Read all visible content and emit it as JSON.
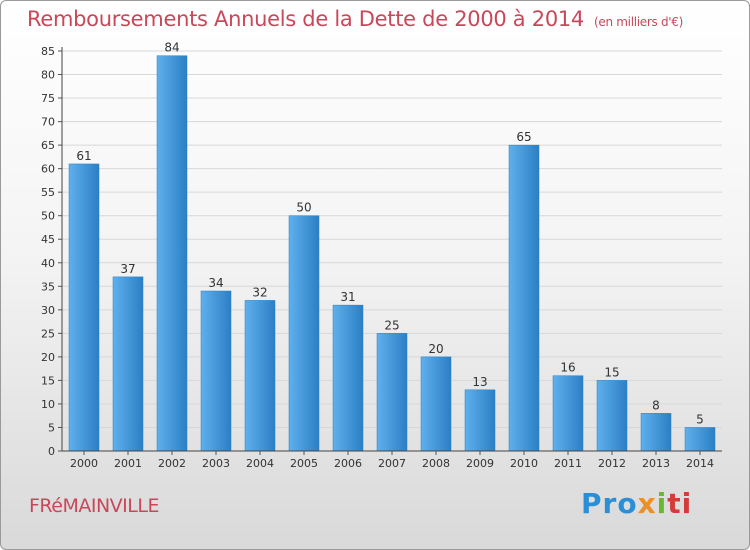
{
  "header": {
    "title": "Remboursements Annuels de la Dette de 2000 à 2014",
    "unit": "(en milliers d'€)"
  },
  "footer": {
    "commune": "FRéMAINVILLE",
    "logo_parts": [
      "Pro",
      "x",
      "i",
      "ti"
    ]
  },
  "colors": {
    "bar_light": "#5fb0ec",
    "bar_dark": "#2b7fc4",
    "title": "#c8485a"
  },
  "chart_data": {
    "type": "bar",
    "title": "Remboursements Annuels de la Dette de 2000 à 2014",
    "xlabel": "",
    "ylabel": "",
    "categories": [
      "2000",
      "2001",
      "2002",
      "2003",
      "2004",
      "2005",
      "2006",
      "2007",
      "2008",
      "2009",
      "2010",
      "2011",
      "2012",
      "2013",
      "2014"
    ],
    "values": [
      61,
      37,
      84,
      34,
      32,
      50,
      31,
      25,
      20,
      13,
      65,
      16,
      15,
      8,
      5
    ],
    "ylim": [
      0,
      85
    ],
    "yticks": [
      0,
      5,
      10,
      15,
      20,
      25,
      30,
      35,
      40,
      45,
      50,
      55,
      60,
      65,
      70,
      75,
      80,
      85
    ],
    "grid": true
  }
}
